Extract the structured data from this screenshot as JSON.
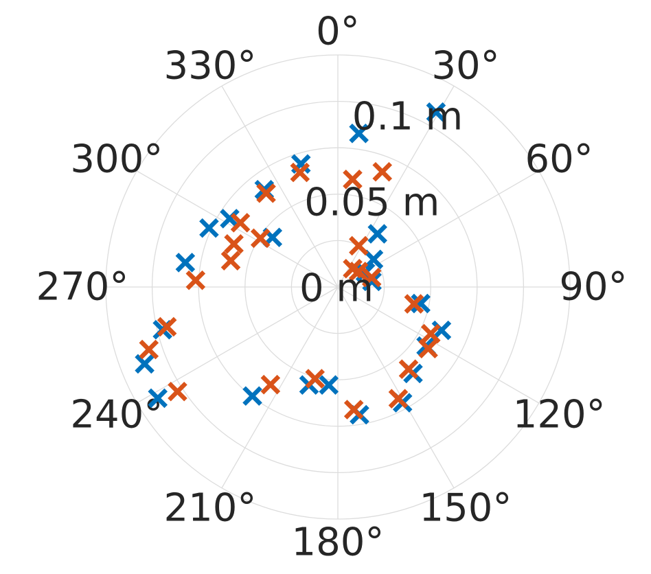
{
  "chart_data": {
    "type": "scatter",
    "projection": "polar",
    "theta_direction": "clockwise",
    "theta_zero": "top",
    "marker": "x",
    "grid": true,
    "r_range": [
      0,
      0.125
    ],
    "r_ticks": [
      0,
      0.05,
      0.1
    ],
    "r_tick_labels": [
      "0 m",
      "0.05 m",
      "0.1 m"
    ],
    "theta_ticks": [
      0,
      30,
      60,
      90,
      120,
      150,
      180,
      210,
      240,
      270,
      300,
      330
    ],
    "theta_tick_labels": [
      "0°",
      "30°",
      "60°",
      "90°",
      "120°",
      "150°",
      "180°",
      "210°",
      "240°",
      "270°",
      "300°",
      "330°"
    ],
    "series": [
      {
        "color": "#0072bd",
        "points": [
          {
            "theta": 29.3,
            "r": 0.108
          },
          {
            "theta": 7.8,
            "r": 0.0835
          },
          {
            "theta": 343.3,
            "r": 0.0692
          },
          {
            "theta": 322.9,
            "r": 0.0657
          },
          {
            "theta": 302.3,
            "r": 0.0689
          },
          {
            "theta": 307.2,
            "r": 0.0442
          },
          {
            "theta": 294.6,
            "r": 0.0763
          },
          {
            "theta": 36.7,
            "r": 0.0357
          },
          {
            "theta": 52.3,
            "r": 0.0243
          },
          {
            "theta": 62.0,
            "r": 0.0168
          },
          {
            "theta": 80.7,
            "r": 0.0186
          },
          {
            "theta": 101.3,
            "r": 0.0455
          },
          {
            "theta": 112.7,
            "r": 0.0605
          },
          {
            "theta": 123.8,
            "r": 0.0572
          },
          {
            "theta": 139.0,
            "r": 0.0617
          },
          {
            "theta": 150.8,
            "r": 0.0714
          },
          {
            "theta": 170.4,
            "r": 0.0698
          },
          {
            "theta": 185.3,
            "r": 0.053
          },
          {
            "theta": 196.4,
            "r": 0.055
          },
          {
            "theta": 218.1,
            "r": 0.0746
          },
          {
            "theta": 238.3,
            "r": 0.114
          },
          {
            "theta": 248.3,
            "r": 0.112
          },
          {
            "theta": 256.3,
            "r": 0.0972
          },
          {
            "theta": 279.1,
            "r": 0.0832
          }
        ]
      },
      {
        "color": "#d95319",
        "points": [
          {
            "theta": 21.1,
            "r": 0.0665
          },
          {
            "theta": 7.8,
            "r": 0.0585
          },
          {
            "theta": 341.7,
            "r": 0.065
          },
          {
            "theta": 322.6,
            "r": 0.0636
          },
          {
            "theta": 303.4,
            "r": 0.0629
          },
          {
            "theta": 302.2,
            "r": 0.0493
          },
          {
            "theta": 292.5,
            "r": 0.0606
          },
          {
            "theta": 26.8,
            "r": 0.0249
          },
          {
            "theta": 38.8,
            "r": 0.0127
          },
          {
            "theta": 53.1,
            "r": 0.0139
          },
          {
            "theta": 74.3,
            "r": 0.0189
          },
          {
            "theta": 102.5,
            "r": 0.042
          },
          {
            "theta": 116.7,
            "r": 0.056
          },
          {
            "theta": 124.3,
            "r": 0.0589
          },
          {
            "theta": 139.3,
            "r": 0.0584
          },
          {
            "theta": 151.6,
            "r": 0.0684
          },
          {
            "theta": 172.6,
            "r": 0.0666
          },
          {
            "theta": 194.0,
            "r": 0.0509
          },
          {
            "theta": 214.6,
            "r": 0.0639
          },
          {
            "theta": 236.9,
            "r": 0.1031
          },
          {
            "theta": 251.7,
            "r": 0.1072
          },
          {
            "theta": 256.9,
            "r": 0.0945
          },
          {
            "theta": 272.7,
            "r": 0.0767
          },
          {
            "theta": 283.8,
            "r": 0.0594
          }
        ]
      }
    ]
  }
}
